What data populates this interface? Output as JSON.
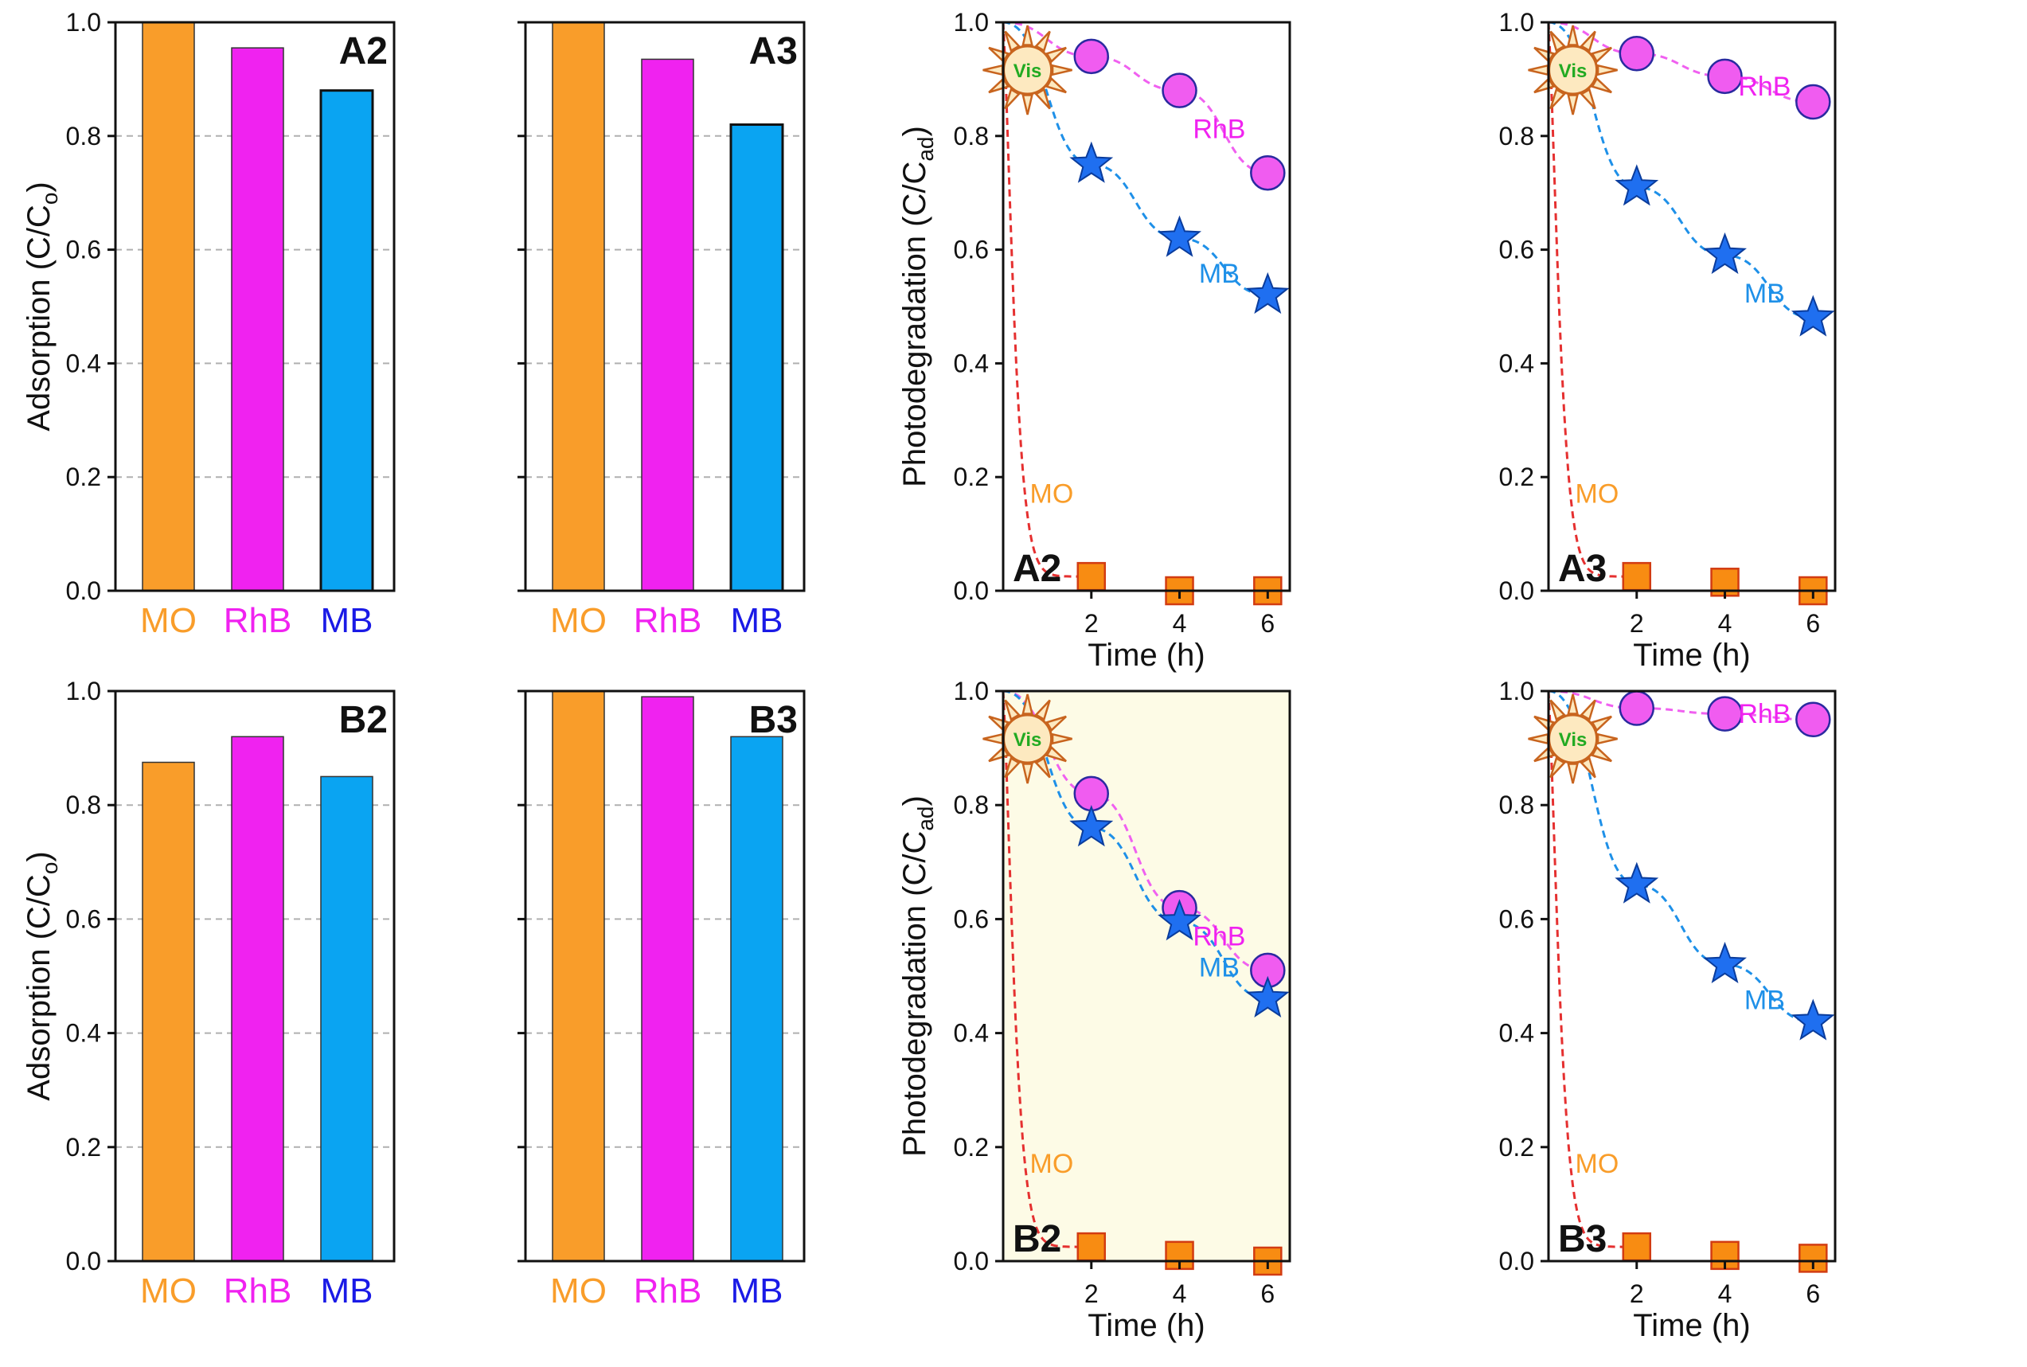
{
  "styles": {
    "MO": "#f99d2a",
    "RhB": "#f022f0",
    "MB": "#0aa4f2",
    "mb_marker": "#1f6ff0",
    "mo_line": "#e53030",
    "rhb_line": "#f060f0",
    "mb_line": "#1e90e8",
    "mb_label_blue": "#1a1ae6",
    "panel_b2_bg": "#fdfbe6",
    "grid": "#b0b0b0",
    "sun_fill": "#fde9c0",
    "sun_stroke": "#c8641e"
  },
  "labels": {
    "adsorption_ylabel": "Adsorption (C/C",
    "adsorption_ylabel_sub": "o",
    "photo_ylabel": "Photodegradation (C/C",
    "photo_ylabel_sub": "ad",
    "time_xlabel": "Time (h)",
    "vis": "Vis",
    "close_paren": ")"
  },
  "chart_data": [
    {
      "type": "bar",
      "panel": "A2",
      "categories": [
        "MO",
        "RhB",
        "MB"
      ],
      "values": [
        1.0,
        0.955,
        0.88
      ],
      "ylabel": "Adsorption (C/Co)",
      "ylim": [
        0,
        1.0
      ],
      "yticks": [
        "0.0",
        "0.2",
        "0.4",
        "0.6",
        "0.8",
        "1.0"
      ],
      "grid": "dashed horizontal"
    },
    {
      "type": "bar",
      "panel": "A3",
      "categories": [
        "MO",
        "RhB",
        "MB"
      ],
      "values": [
        1.0,
        0.935,
        0.82
      ],
      "ylim": [
        0,
        1.0
      ],
      "grid": "dashed horizontal"
    },
    {
      "type": "line",
      "panel": "A2",
      "x": [
        2,
        4,
        6
      ],
      "xticks": [
        "2",
        "4",
        "6"
      ],
      "xlabel": "Time (h)",
      "ylabel": "Photodegradation (C/Cad)",
      "ylim": [
        0,
        1.0
      ],
      "yticks": [
        "0.0",
        "0.2",
        "0.4",
        "0.6",
        "0.8",
        "1.0"
      ],
      "series": [
        {
          "name": "RhB",
          "values": [
            0.94,
            0.88,
            0.735
          ]
        },
        {
          "name": "MB",
          "values": [
            0.75,
            0.62,
            0.52
          ]
        },
        {
          "name": "MO",
          "values": [
            0.025,
            0.0,
            0.0
          ]
        }
      ]
    },
    {
      "type": "line",
      "panel": "A3",
      "x": [
        2,
        4,
        6
      ],
      "xticks": [
        "2",
        "4",
        "6"
      ],
      "xlabel": "Time (h)",
      "ylim": [
        0,
        1.0
      ],
      "yticks": [
        "0.0",
        "0.2",
        "0.4",
        "0.6",
        "0.8",
        "1.0"
      ],
      "series": [
        {
          "name": "RhB",
          "values": [
            0.945,
            0.905,
            0.86
          ]
        },
        {
          "name": "MB",
          "values": [
            0.71,
            0.59,
            0.48
          ]
        },
        {
          "name": "MO",
          "values": [
            0.025,
            0.015,
            0.0
          ]
        }
      ]
    },
    {
      "type": "bar",
      "panel": "B2",
      "categories": [
        "MO",
        "RhB",
        "MB"
      ],
      "values": [
        0.875,
        0.92,
        0.85
      ],
      "ylabel": "Adsorption (C/Co)",
      "ylim": [
        0,
        1.0
      ],
      "yticks": [
        "0.0",
        "0.2",
        "0.4",
        "0.6",
        "0.8",
        "1.0"
      ],
      "grid": "dashed horizontal"
    },
    {
      "type": "bar",
      "panel": "B3",
      "categories": [
        "MO",
        "RhB",
        "MB"
      ],
      "values": [
        1.0,
        0.99,
        0.92
      ],
      "ylim": [
        0,
        1.0
      ],
      "grid": "dashed horizontal"
    },
    {
      "type": "line",
      "panel": "B2",
      "x": [
        2,
        4,
        6
      ],
      "xticks": [
        "2",
        "4",
        "6"
      ],
      "xlabel": "Time (h)",
      "ylabel": "Photodegradation (C/Cad)",
      "ylim": [
        0,
        1.0
      ],
      "yticks": [
        "0.0",
        "0.2",
        "0.4",
        "0.6",
        "0.8",
        "1.0"
      ],
      "series": [
        {
          "name": "RhB",
          "values": [
            0.82,
            0.62,
            0.51
          ]
        },
        {
          "name": "MB",
          "values": [
            0.76,
            0.595,
            0.46
          ]
        },
        {
          "name": "MO",
          "values": [
            0.025,
            0.01,
            0.0
          ]
        }
      ]
    },
    {
      "type": "line",
      "panel": "B3",
      "x": [
        2,
        4,
        6
      ],
      "xticks": [
        "2",
        "4",
        "6"
      ],
      "xlabel": "Time (h)",
      "ylim": [
        0,
        1.0
      ],
      "yticks": [
        "0.0",
        "0.2",
        "0.4",
        "0.6",
        "0.8",
        "1.0"
      ],
      "series": [
        {
          "name": "RhB",
          "values": [
            0.97,
            0.96,
            0.95
          ]
        },
        {
          "name": "MB",
          "values": [
            0.66,
            0.52,
            0.42
          ]
        },
        {
          "name": "MO",
          "values": [
            0.025,
            0.01,
            0.005
          ]
        }
      ]
    }
  ]
}
